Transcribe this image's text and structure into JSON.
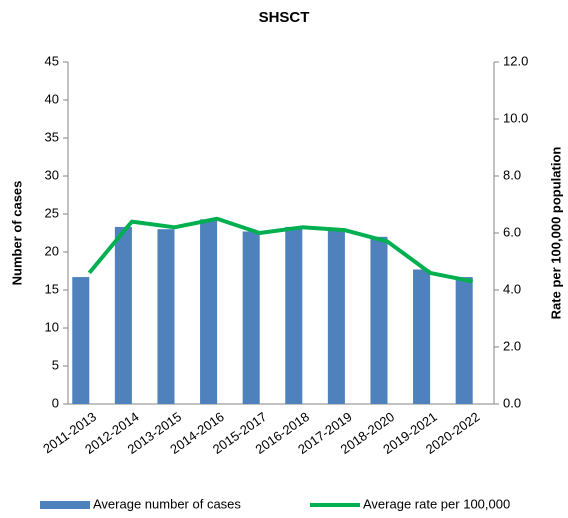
{
  "chart_data": {
    "type": "bar-line",
    "title": "SHSCT",
    "y_label": "Number of cases",
    "y2_label": "Rate per 100,000 population",
    "categories": [
      "2011-2013",
      "2012-2014",
      "2013-2015",
      "2014-2016",
      "2015-2017",
      "2016-2018",
      "2017-2019",
      "2018-2020",
      "2019-2021",
      "2020-2022"
    ],
    "series": [
      {
        "name": "Average number of cases",
        "type": "bar",
        "color": "#4f81bd",
        "values": [
          16.7,
          23.3,
          23,
          24.3,
          22.7,
          23.3,
          23,
          22,
          17.7,
          16.7
        ]
      },
      {
        "name": "Average rate per 100,000",
        "type": "line",
        "axis": "y2",
        "color": "#00b050",
        "values": [
          4.6,
          6.4,
          6.2,
          6.5,
          6.0,
          6.2,
          6.1,
          5.7,
          4.6,
          4.3
        ]
      }
    ],
    "ylim": [
      0,
      45
    ],
    "yticks": [
      0,
      5,
      10,
      15,
      20,
      25,
      30,
      35,
      40,
      45
    ],
    "y2lim": [
      0,
      12
    ],
    "y2ticks": [
      {
        "value": 0,
        "label": "0.0"
      },
      {
        "value": 2,
        "label": "2.0"
      },
      {
        "value": 4,
        "label": "4.0"
      },
      {
        "value": 6,
        "label": "6.0"
      },
      {
        "value": 8,
        "label": "8.0"
      },
      {
        "value": 10,
        "label": "10.0"
      },
      {
        "value": 12,
        "label": "12.0"
      }
    ],
    "grid": false,
    "legend": "bottom"
  }
}
